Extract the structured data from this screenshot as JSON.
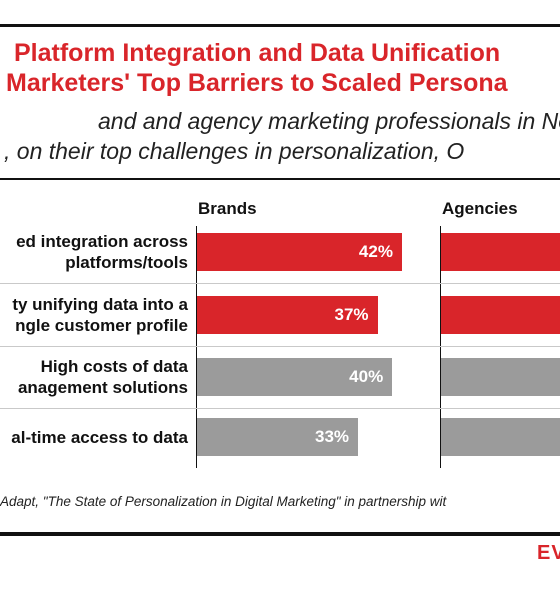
{
  "title_lines": [
    "Platform Integration and Data Unification",
    "Marketers' Top Barriers to Scaled Persona"
  ],
  "subtitle_lines": [
    "and and agency marketing professionals in No",
    ", on their top challenges in personalization, O"
  ],
  "source": "Adapt, \"The State of Personalization in Digital Marketing\" in partnership wit",
  "logo": "EV",
  "colors": {
    "accent": "#d9252a",
    "gray": "#9b9b9b"
  },
  "chart_data": {
    "type": "bar",
    "orientation": "horizontal",
    "categories": [
      [
        "ed integration across",
        "platforms/tools"
      ],
      [
        "ty unifying data into a",
        "ngle customer profile"
      ],
      [
        "High costs of data",
        "anagement solutions"
      ],
      [
        "al-time access to data"
      ]
    ],
    "series": [
      {
        "name": "Brands",
        "values": [
          42,
          37,
          40,
          33
        ],
        "labels": [
          "42%",
          "37%",
          "40%",
          "33%"
        ],
        "colors": [
          "#d9252a",
          "#d9252a",
          "#9b9b9b",
          "#9b9b9b"
        ]
      },
      {
        "name": "Agencies",
        "values": [
          null,
          null,
          null,
          null
        ],
        "colors": [
          "#d9252a",
          "#d9252a",
          "#9b9b9b",
          "#9b9b9b"
        ]
      }
    ],
    "xlim": [
      0,
      100
    ],
    "grid": false
  }
}
